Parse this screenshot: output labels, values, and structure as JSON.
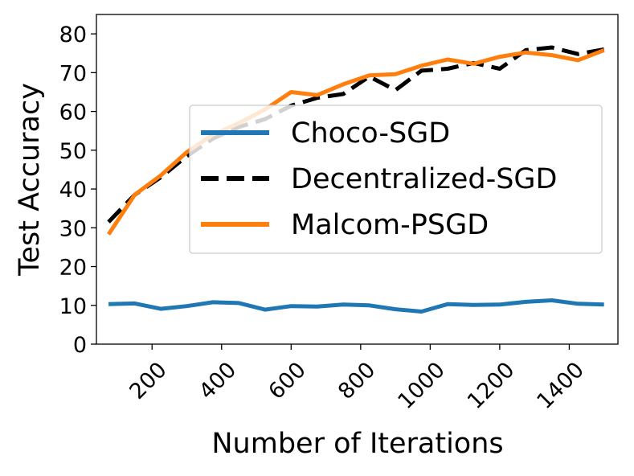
{
  "chart_data": {
    "type": "line",
    "title": "",
    "xlabel": "Number of Iterations",
    "ylabel": "Test Accuracy",
    "xlim": [
      40,
      1540
    ],
    "ylim": [
      0,
      85
    ],
    "x_ticks": [
      200,
      400,
      600,
      800,
      1000,
      1200,
      1400
    ],
    "x_tick_labels": [
      "200",
      "400",
      "600",
      "800",
      "1000",
      "1200",
      "1400"
    ],
    "y_ticks": [
      0,
      10,
      20,
      30,
      40,
      50,
      60,
      70,
      80
    ],
    "y_tick_labels": [
      "0",
      "10",
      "20",
      "30",
      "40",
      "50",
      "60",
      "70",
      "80"
    ],
    "grid": false,
    "legend_position": "center-right",
    "x": [
      75,
      150,
      225,
      300,
      375,
      450,
      525,
      600,
      675,
      750,
      825,
      900,
      975,
      1050,
      1125,
      1200,
      1275,
      1350,
      1425,
      1500
    ],
    "series": [
      {
        "name": "Choco-SGD",
        "color": "#1f77b4",
        "style": "solid",
        "values": [
          10.3,
          10.5,
          9.1,
          9.8,
          10.8,
          10.6,
          8.9,
          9.8,
          9.7,
          10.2,
          10.0,
          9.0,
          8.4,
          10.3,
          10.1,
          10.2,
          10.9,
          11.3,
          10.4,
          10.2
        ]
      },
      {
        "name": "Decentralized-SGD",
        "color": "#000000",
        "style": "dashed",
        "values": [
          31.5,
          38.5,
          43.0,
          48.5,
          53.0,
          56.0,
          58.0,
          61.5,
          63.5,
          64.5,
          69.0,
          65.5,
          70.5,
          71.0,
          72.5,
          71.0,
          75.8,
          76.5,
          74.8,
          76.0
        ]
      },
      {
        "name": "Malcom-PSGD",
        "color": "#ff7f0e",
        "style": "solid",
        "values": [
          28.3,
          38.5,
          43.5,
          49.5,
          54.0,
          57.0,
          60.5,
          65.0,
          64.2,
          67.0,
          69.3,
          69.6,
          71.8,
          73.4,
          72.3,
          74.1,
          75.2,
          74.5,
          73.2,
          75.8
        ]
      }
    ]
  }
}
